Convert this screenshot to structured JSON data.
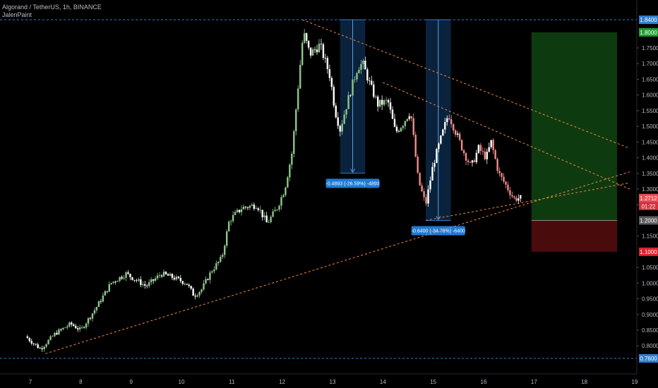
{
  "header": {
    "title": "Algorand / TetherUS, 1h, BINANCE",
    "author": "JalenPaint"
  },
  "colors": {
    "background": "#000000",
    "up_candle": "#8fc78b",
    "down_candle": "#f28b8b",
    "neutral_candle": "#ffffff",
    "trendline": "#f08a3c",
    "measure_box": "#1a5a9e",
    "measure_label_bg": "#1e7ad6",
    "reference_line": "#2f7fd0",
    "target_zone": "#0e3a10",
    "stop_zone": "#4a0b0d"
  },
  "chart_data": {
    "type": "candlestick",
    "symbol": "ALGOUSDT",
    "timeframe": "1h",
    "ylim": [
      0.76,
      1.84
    ],
    "x_ticks": [
      "7",
      "8",
      "9",
      "10",
      "11",
      "12",
      "13",
      "14",
      "15",
      "16",
      "17",
      "18",
      "19"
    ],
    "y_ticks": [
      "0.8000",
      "0.8500",
      "0.9000",
      "0.9500",
      "1.0000",
      "1.0500",
      "1.1000",
      "1.1500",
      "1.2000",
      "1.2500",
      "1.3000",
      "1.3500",
      "1.4000",
      "1.4500",
      "1.5000",
      "1.5500",
      "1.6000",
      "1.6500",
      "1.7000",
      "1.7500",
      "1.8000",
      "1.8400"
    ],
    "price_series": [
      [
        6.9,
        0.83
      ],
      [
        7.2,
        0.79
      ],
      [
        7.5,
        0.84
      ],
      [
        7.8,
        0.87
      ],
      [
        8.0,
        0.85
      ],
      [
        8.3,
        0.92
      ],
      [
        8.6,
        1.0
      ],
      [
        8.9,
        1.03
      ],
      [
        9.1,
        1.01
      ],
      [
        9.3,
        0.99
      ],
      [
        9.6,
        1.03
      ],
      [
        9.8,
        1.02
      ],
      [
        10.1,
        1.0
      ],
      [
        10.25,
        0.96
      ],
      [
        10.4,
        0.98
      ],
      [
        10.6,
        1.04
      ],
      [
        10.8,
        1.08
      ],
      [
        10.95,
        1.2
      ],
      [
        11.2,
        1.24
      ],
      [
        11.5,
        1.25
      ],
      [
        11.7,
        1.19
      ],
      [
        11.9,
        1.24
      ],
      [
        12.05,
        1.3
      ],
      [
        12.2,
        1.42
      ],
      [
        12.3,
        1.6
      ],
      [
        12.42,
        1.8
      ],
      [
        12.55,
        1.73
      ],
      [
        12.75,
        1.76
      ],
      [
        12.95,
        1.66
      ],
      [
        13.05,
        1.55
      ],
      [
        13.15,
        1.49
      ],
      [
        13.3,
        1.58
      ],
      [
        13.5,
        1.69
      ],
      [
        13.6,
        1.7
      ],
      [
        13.75,
        1.63
      ],
      [
        13.9,
        1.57
      ],
      [
        14.1,
        1.58
      ],
      [
        14.25,
        1.48
      ],
      [
        14.4,
        1.51
      ],
      [
        14.55,
        1.55
      ],
      [
        14.7,
        1.33
      ],
      [
        14.85,
        1.25
      ],
      [
        15.0,
        1.38
      ],
      [
        15.15,
        1.46
      ],
      [
        15.3,
        1.54
      ],
      [
        15.45,
        1.48
      ],
      [
        15.6,
        1.42
      ],
      [
        15.75,
        1.37
      ],
      [
        15.9,
        1.43
      ],
      [
        16.05,
        1.4
      ],
      [
        16.15,
        1.45
      ],
      [
        16.3,
        1.35
      ],
      [
        16.45,
        1.31
      ],
      [
        16.6,
        1.27
      ],
      [
        16.75,
        1.271
      ]
    ],
    "current_price": "1.2712",
    "countdown": "01:22",
    "levels": [
      {
        "value": 1.84,
        "label": "1.8400",
        "color": "#2f7fd0"
      },
      {
        "value": 1.8,
        "label": "1.8000",
        "color": "#1f9d2f"
      },
      {
        "value": 1.2,
        "label": "1.2000",
        "color": "#5b5b5b"
      },
      {
        "value": 1.1,
        "label": "1.1000",
        "color": "#e0202a"
      },
      {
        "value": 0.76,
        "label": "0.7600",
        "color": "#2f7fd0"
      }
    ],
    "trendlines": [
      {
        "name": "upper-resistance",
        "x": [
          12.4,
          18.9
        ],
        "y": [
          1.84,
          1.43
        ]
      },
      {
        "name": "mid-resistance",
        "x": [
          14.0,
          18.9
        ],
        "y": [
          1.64,
          1.3
        ]
      },
      {
        "name": "lower-support",
        "x": [
          7.3,
          18.9
        ],
        "y": [
          0.775,
          1.355
        ]
      },
      {
        "name": "inner-support",
        "x": [
          14.85,
          18.9
        ],
        "y": [
          1.2,
          1.32
        ]
      }
    ],
    "measurements": [
      {
        "x0": 13.15,
        "x1": 13.65,
        "y_top": 1.84,
        "y_bottom": 1.351,
        "label": "-0.4893 (-26.59%) -4893"
      },
      {
        "x0": 14.85,
        "x1": 15.35,
        "y_top": 1.84,
        "y_bottom": 1.2,
        "label": "-0.6400 (-34.78%) -6400"
      }
    ],
    "position": {
      "x0": 16.95,
      "x1": 18.65,
      "entry": 1.2,
      "target": 1.8,
      "stop": 1.1
    }
  }
}
